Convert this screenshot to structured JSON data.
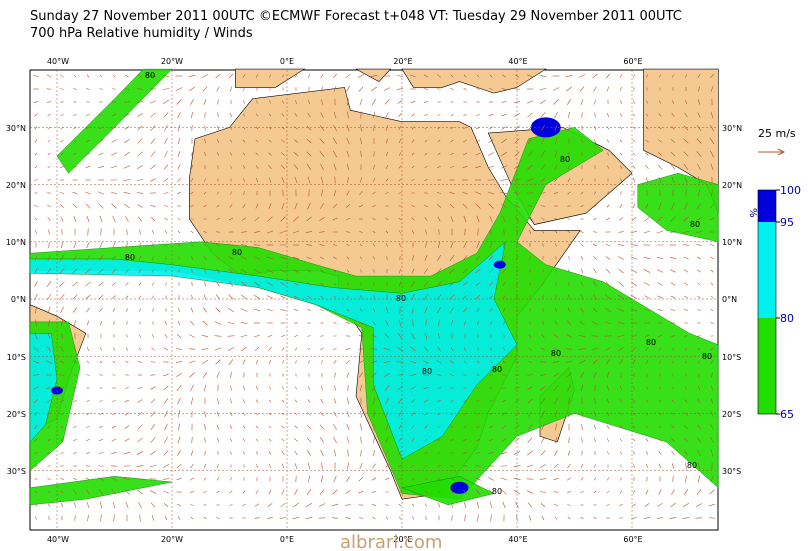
{
  "header": {
    "title": "Sunday 27 November 2011 00UTC ©ECMWF Forecast t+048 VT: Tuesday 29 November 2011 00UTC",
    "subtitle": "700 hPa Relative humidity / Winds"
  },
  "map": {
    "lon_labels": [
      "40°W",
      "20°W",
      "0°E",
      "20°E",
      "40°E",
      "60°E"
    ],
    "lat_labels": [
      "30°N",
      "20°N",
      "10°N",
      "0°N",
      "10°S",
      "20°S",
      "30°S"
    ],
    "contour_labels": [
      "80",
      "80",
      "80",
      "80",
      "80",
      "80",
      "80",
      "80",
      "80",
      "80",
      "80",
      "80",
      "80"
    ]
  },
  "wind_legend": "25 m/s",
  "colorbar": {
    "unit": "%",
    "ticks": [
      100,
      95,
      80,
      65
    ],
    "colors": [
      "#0000dd",
      "#00f0f0",
      "#22dd00"
    ]
  },
  "watermark": "albrari.com"
}
